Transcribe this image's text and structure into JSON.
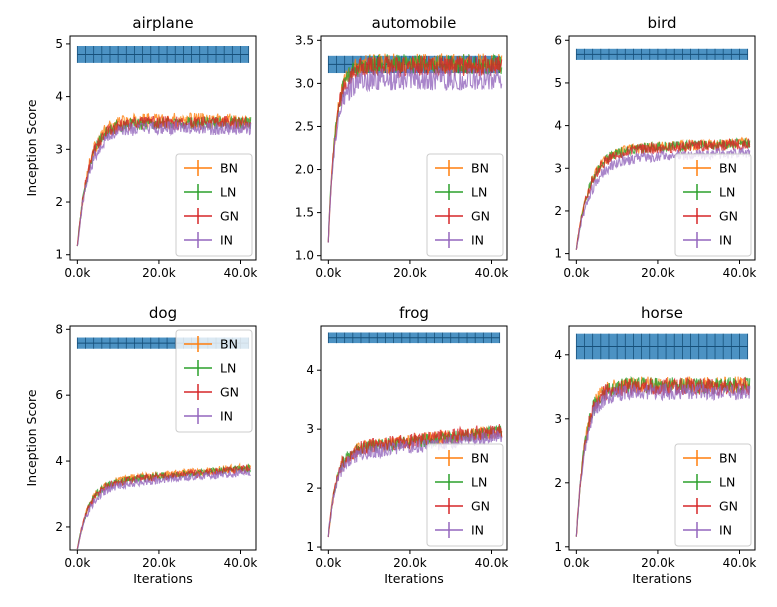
{
  "chart_data": [
    {
      "type": "line",
      "title": "airplane",
      "xlabel": "",
      "ylabel": "Inception Score",
      "xlim": [
        -1.8,
        43.8
      ],
      "ylim": [
        0.9,
        5.15
      ],
      "x_ticks": [
        {
          "v": 0,
          "label": "0.0k"
        },
        {
          "v": 20,
          "label": "20.0k"
        },
        {
          "v": 40,
          "label": "40.0k"
        }
      ],
      "y_ticks": [
        {
          "v": 1,
          "label": "1"
        },
        {
          "v": 2,
          "label": "2"
        },
        {
          "v": 3,
          "label": "3"
        },
        {
          "v": 4,
          "label": "4"
        },
        {
          "v": 5,
          "label": "5"
        }
      ],
      "band": {
        "center": 4.8,
        "half_width": 0.16,
        "x_range": [
          0,
          42
        ]
      },
      "legend": "lower-right",
      "curve": {
        "start": 1.15,
        "plateau": 3.5,
        "rate": 0.35,
        "drift": 0.0
      },
      "series": [
        {
          "name": "BN",
          "color": "#ff7f0e",
          "offset": 0.05,
          "noise": 0.14
        },
        {
          "name": "LN",
          "color": "#2ca02c",
          "offset": 0.0,
          "noise": 0.12
        },
        {
          "name": "GN",
          "color": "#d62728",
          "offset": 0.0,
          "noise": 0.13
        },
        {
          "name": "IN",
          "color": "#9467bd",
          "offset": -0.1,
          "noise": 0.13
        }
      ]
    },
    {
      "type": "line",
      "title": "automobile",
      "xlabel": "",
      "ylabel": "",
      "xlim": [
        -1.8,
        43.8
      ],
      "ylim": [
        0.95,
        3.55
      ],
      "x_ticks": [
        {
          "v": 0,
          "label": "0.0k"
        },
        {
          "v": 20,
          "label": "20.0k"
        },
        {
          "v": 40,
          "label": "40.0k"
        }
      ],
      "y_ticks": [
        {
          "v": 1.0,
          "label": "1.0"
        },
        {
          "v": 1.5,
          "label": "1.5"
        },
        {
          "v": 2.0,
          "label": "2.0"
        },
        {
          "v": 2.5,
          "label": "2.5"
        },
        {
          "v": 3.0,
          "label": "3.0"
        },
        {
          "v": 3.5,
          "label": "3.5"
        }
      ],
      "band": {
        "center": 3.22,
        "half_width": 0.1,
        "x_range": [
          0,
          42
        ]
      },
      "legend": "lower-right",
      "curve": {
        "start": 1.2,
        "plateau": 3.2,
        "rate": 0.55,
        "drift": 0.0
      },
      "series": [
        {
          "name": "BN",
          "color": "#ff7f0e",
          "offset": 0.03,
          "noise": 0.12
        },
        {
          "name": "LN",
          "color": "#2ca02c",
          "offset": 0.02,
          "noise": 0.12
        },
        {
          "name": "GN",
          "color": "#d62728",
          "offset": 0.0,
          "noise": 0.12
        },
        {
          "name": "IN",
          "color": "#9467bd",
          "offset": -0.15,
          "noise": 0.13
        }
      ]
    },
    {
      "type": "line",
      "title": "bird",
      "xlabel": "",
      "ylabel": "",
      "xlim": [
        -1.8,
        43.8
      ],
      "ylim": [
        0.85,
        6.1
      ],
      "x_ticks": [
        {
          "v": 0,
          "label": "0.0k"
        },
        {
          "v": 20,
          "label": "20.0k"
        },
        {
          "v": 40,
          "label": "40.0k"
        }
      ],
      "y_ticks": [
        {
          "v": 1,
          "label": "1"
        },
        {
          "v": 2,
          "label": "2"
        },
        {
          "v": 3,
          "label": "3"
        },
        {
          "v": 4,
          "label": "4"
        },
        {
          "v": 5,
          "label": "5"
        },
        {
          "v": 6,
          "label": "6"
        }
      ],
      "band": {
        "center": 5.67,
        "half_width": 0.13,
        "x_range": [
          0,
          42
        ]
      },
      "legend": "lower-right",
      "curve": {
        "start": 1.1,
        "plateau": 3.4,
        "rate": 0.3,
        "drift": 0.004
      },
      "series": [
        {
          "name": "BN",
          "color": "#ff7f0e",
          "offset": 0.03,
          "noise": 0.12
        },
        {
          "name": "LN",
          "color": "#2ca02c",
          "offset": 0.02,
          "noise": 0.12
        },
        {
          "name": "GN",
          "color": "#d62728",
          "offset": 0.0,
          "noise": 0.13
        },
        {
          "name": "IN",
          "color": "#9467bd",
          "offset": -0.2,
          "noise": 0.13
        }
      ]
    },
    {
      "type": "line",
      "title": "dog",
      "xlabel": "Iterations",
      "ylabel": "Inception Score",
      "xlim": [
        -1.8,
        43.8
      ],
      "ylim": [
        1.3,
        8.1
      ],
      "x_ticks": [
        {
          "v": 0,
          "label": "0.0k"
        },
        {
          "v": 20,
          "label": "20.0k"
        },
        {
          "v": 40,
          "label": "40.0k"
        }
      ],
      "y_ticks": [
        {
          "v": 2,
          "label": "2"
        },
        {
          "v": 4,
          "label": "4"
        },
        {
          "v": 6,
          "label": "6"
        },
        {
          "v": 8,
          "label": "8"
        }
      ],
      "band": {
        "center": 7.58,
        "half_width": 0.17,
        "x_range": [
          0,
          42
        ]
      },
      "legend": "upper-right",
      "curve": {
        "start": 1.3,
        "plateau": 3.3,
        "rate": 0.35,
        "drift": 0.011
      },
      "series": [
        {
          "name": "BN",
          "color": "#ff7f0e",
          "offset": 0.05,
          "noise": 0.12
        },
        {
          "name": "LN",
          "color": "#2ca02c",
          "offset": 0.02,
          "noise": 0.11
        },
        {
          "name": "GN",
          "color": "#d62728",
          "offset": 0.0,
          "noise": 0.12
        },
        {
          "name": "IN",
          "color": "#9467bd",
          "offset": -0.1,
          "noise": 0.12
        }
      ]
    },
    {
      "type": "line",
      "title": "frog",
      "xlabel": "Iterations",
      "ylabel": "",
      "xlim": [
        -1.8,
        43.8
      ],
      "ylim": [
        0.95,
        4.75
      ],
      "x_ticks": [
        {
          "v": 0,
          "label": "0.0k"
        },
        {
          "v": 20,
          "label": "20.0k"
        },
        {
          "v": 40,
          "label": "40.0k"
        }
      ],
      "y_ticks": [
        {
          "v": 1,
          "label": "1"
        },
        {
          "v": 2,
          "label": "2"
        },
        {
          "v": 3,
          "label": "3"
        },
        {
          "v": 4,
          "label": "4"
        }
      ],
      "band": {
        "center": 4.55,
        "half_width": 0.09,
        "x_range": [
          0,
          42
        ]
      },
      "legend": "lower-right",
      "curve": {
        "start": 1.2,
        "plateau": 2.6,
        "rate": 0.5,
        "drift": 0.008
      },
      "series": [
        {
          "name": "BN",
          "color": "#ff7f0e",
          "offset": 0.03,
          "noise": 0.12
        },
        {
          "name": "LN",
          "color": "#2ca02c",
          "offset": 0.02,
          "noise": 0.11
        },
        {
          "name": "GN",
          "color": "#d62728",
          "offset": 0.04,
          "noise": 0.13
        },
        {
          "name": "IN",
          "color": "#9467bd",
          "offset": -0.06,
          "noise": 0.12
        }
      ]
    },
    {
      "type": "line",
      "title": "horse",
      "xlabel": "Iterations",
      "ylabel": "",
      "xlim": [
        -1.8,
        43.8
      ],
      "ylim": [
        0.95,
        4.45
      ],
      "x_ticks": [
        {
          "v": 0,
          "label": "0.0k"
        },
        {
          "v": 20,
          "label": "20.0k"
        },
        {
          "v": 40,
          "label": "40.0k"
        }
      ],
      "y_ticks": [
        {
          "v": 1,
          "label": "1"
        },
        {
          "v": 2,
          "label": "2"
        },
        {
          "v": 3,
          "label": "3"
        },
        {
          "v": 4,
          "label": "4"
        }
      ],
      "band": {
        "center": 4.13,
        "half_width": 0.2,
        "x_range": [
          0,
          42
        ]
      },
      "legend": "lower-right",
      "curve": {
        "start": 1.15,
        "plateau": 3.5,
        "rate": 0.45,
        "drift": 0.0
      },
      "series": [
        {
          "name": "BN",
          "color": "#ff7f0e",
          "offset": 0.03,
          "noise": 0.13
        },
        {
          "name": "LN",
          "color": "#2ca02c",
          "offset": 0.02,
          "noise": 0.13
        },
        {
          "name": "GN",
          "color": "#d62728",
          "offset": 0.0,
          "noise": 0.14
        },
        {
          "name": "IN",
          "color": "#9467bd",
          "offset": -0.08,
          "noise": 0.13
        }
      ]
    }
  ]
}
